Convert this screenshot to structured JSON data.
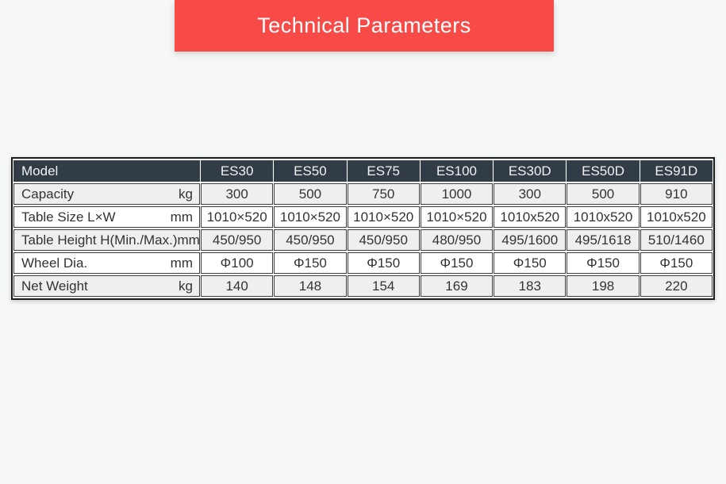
{
  "colors": {
    "page_bg": "#f6f7f7",
    "banner_bg": "#f84a46",
    "banner_text": "#ffffff",
    "header_bg": "#323c46",
    "header_text": "#f2f2f2",
    "stripe": "#efefef",
    "row_bg": "#ffffff",
    "border": "#3d3d3d",
    "text": "#333333"
  },
  "banner": {
    "title": "Technical Parameters"
  },
  "table": {
    "header": {
      "model_label": "Model",
      "columns": [
        "ES30",
        "ES50",
        "ES75",
        "ES100",
        "ES30D",
        "ES50D",
        "ES91D"
      ]
    },
    "rows": [
      {
        "label": "Capacity",
        "unit": "kg",
        "values": [
          "300",
          "500",
          "750",
          "1000",
          "300",
          "500",
          "910"
        ]
      },
      {
        "label": "Table Size L×W",
        "unit": "mm",
        "values": [
          "1010×520",
          "1010×520",
          "1010×520",
          "1010×520",
          "1010x520",
          "1010x520",
          "1010x520"
        ]
      },
      {
        "label": "Table Height H(Min./Max.)",
        "unit": "mm",
        "values": [
          "450/950",
          "450/950",
          "450/950",
          "480/950",
          "495/1600",
          "495/1618",
          "510/1460"
        ]
      },
      {
        "label": "Wheel Dia.",
        "unit": "mm",
        "values": [
          "Φ100",
          "Φ150",
          "Φ150",
          "Φ150",
          "Φ150",
          "Φ150",
          "Φ150"
        ]
      },
      {
        "label": "Net Weight",
        "unit": "kg",
        "values": [
          "140",
          "148",
          "154",
          "169",
          "183",
          "198",
          "220"
        ]
      }
    ]
  }
}
